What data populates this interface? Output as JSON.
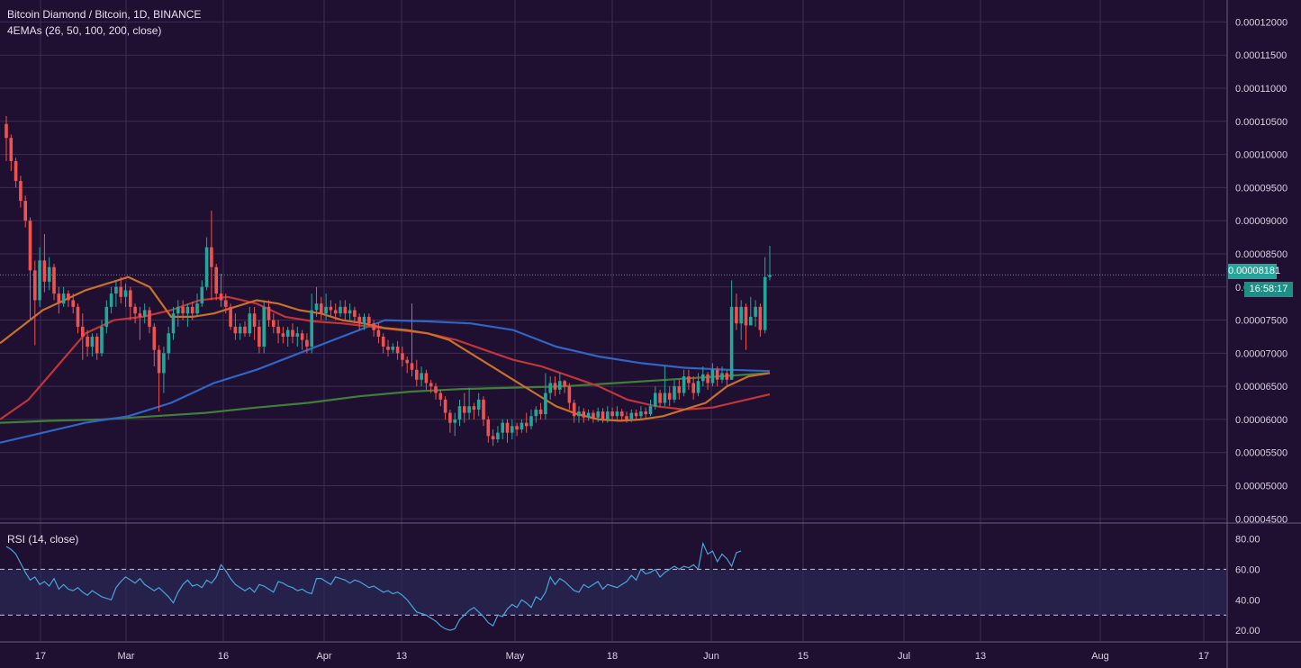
{
  "header": {
    "title": "Bitcoin Diamond / Bitcoin, 1D, BINANCE",
    "ema_legend": "4EMAs (26, 50, 100, 200, close)",
    "rsi_legend": "RSI (14, close)"
  },
  "price_badge": {
    "value": "0.00008181",
    "countdown": "16:58:17"
  },
  "colors": {
    "background": "#1f0f30",
    "grid": "#3d2d52",
    "up": "#26a69a",
    "down": "#ef5350",
    "ema26": "#c9702a",
    "ema50": "#c0353a",
    "ema100": "#2f66c4",
    "ema200": "#3f7f3a",
    "rsi": "#4aa3d9",
    "rsi_band": "#2a2a55"
  },
  "chart_data": {
    "type": "candlestick",
    "x_tick_labels": [
      "17",
      "Mar",
      "16",
      "Apr",
      "13",
      "May",
      "18",
      "Jun",
      "15",
      "Jul",
      "13",
      "Aug",
      "17"
    ],
    "y_tick_labels": [
      "0.00012000",
      "0.00011500",
      "0.00011000",
      "0.00010500",
      "0.00010000",
      "0.00009500",
      "0.00009000",
      "0.00008500",
      "0.00008000",
      "0.00007500",
      "0.00007000",
      "0.00006500",
      "0.00006000",
      "0.00005500",
      "0.00005000",
      "0.00004500"
    ],
    "ylim": [
      4.45e-05,
      0.0001225
    ],
    "last_price": 8.181e-05,
    "candles": [
      [
        0.0001046,
        0.0001025,
        0.0001058,
        9.9e-05
      ],
      [
        0.0001025,
        9.9e-05,
        0.000103,
        9.75e-05
      ],
      [
        9.9e-05,
        9.6e-05,
        9.95e-05,
        9.5e-05
      ],
      [
        9.6e-05,
        9.3e-05,
        9.68e-05,
        9.2e-05
      ],
      [
        9.3e-05,
        9e-05,
        9.38e-05,
        8.9e-05
      ],
      [
        9e-05,
        8.25e-05,
        9.05e-05,
        7.5e-05
      ],
      [
        8.25e-05,
        7.8e-05,
        8.4e-05,
        7.12e-05
      ],
      [
        7.8e-05,
        8.4e-05,
        8.6e-05,
        7.7e-05
      ],
      [
        8.4e-05,
        8.08e-05,
        8.8e-05,
        7.92e-05
      ],
      [
        8.08e-05,
        8.3e-05,
        8.45e-05,
        7.95e-05
      ],
      [
        8.3e-05,
        7.9e-05,
        8.35e-05,
        7.8e-05
      ],
      [
        7.9e-05,
        7.75e-05,
        8e-05,
        7.6e-05
      ],
      [
        7.75e-05,
        7.9e-05,
        8e-05,
        7.7e-05
      ],
      [
        7.9e-05,
        7.8e-05,
        7.95e-05,
        7.7e-05
      ],
      [
        7.8e-05,
        7.7e-05,
        7.9e-05,
        7.6e-05
      ],
      [
        7.7e-05,
        7.4e-05,
        7.75e-05,
        7.3e-05
      ],
      [
        7.4e-05,
        7.25e-05,
        7.6e-05,
        6.9e-05
      ],
      [
        7.25e-05,
        7.1e-05,
        7.35e-05,
        6.95e-05
      ],
      [
        7.1e-05,
        7.25e-05,
        7.3e-05,
        6.95e-05
      ],
      [
        7.25e-05,
        7e-05,
        7.3e-05,
        6.9e-05
      ],
      [
        7e-05,
        7.4e-05,
        7.5e-05,
        6.95e-05
      ],
      [
        7.4e-05,
        7.7e-05,
        7.8e-05,
        7.3e-05
      ],
      [
        7.7e-05,
        7.9e-05,
        8e-05,
        7.6e-05
      ],
      [
        7.9e-05,
        8e-05,
        8.1e-05,
        7.7e-05
      ],
      [
        8e-05,
        7.85e-05,
        8.15e-05,
        7.75e-05
      ],
      [
        7.85e-05,
        7.95e-05,
        8.05e-05,
        7.7e-05
      ],
      [
        7.95e-05,
        7.7e-05,
        8e-05,
        7.5e-05
      ],
      [
        7.7e-05,
        7.6e-05,
        7.75e-05,
        7.45e-05
      ],
      [
        7.6e-05,
        7.55e-05,
        7.7e-05,
        7.2e-05
      ],
      [
        7.55e-05,
        7.65e-05,
        7.75e-05,
        7.45e-05
      ],
      [
        7.65e-05,
        7.4e-05,
        7.7e-05,
        7.3e-05
      ],
      [
        7.4e-05,
        7.05e-05,
        7.45e-05,
        6.8e-05
      ],
      [
        7.05e-05,
        6.7e-05,
        7.12e-05,
        6.12e-05
      ],
      [
        6.7e-05,
        7e-05,
        7.1e-05,
        6.4e-05
      ],
      [
        7e-05,
        7.3e-05,
        7.4e-05,
        6.9e-05
      ],
      [
        7.3e-05,
        7.6e-05,
        7.7e-05,
        7.2e-05
      ],
      [
        7.6e-05,
        7.7e-05,
        7.8e-05,
        7.4e-05
      ],
      [
        7.7e-05,
        7.6e-05,
        7.8e-05,
        7.5e-05
      ],
      [
        7.6e-05,
        7.7e-05,
        7.75e-05,
        7.4e-05
      ],
      [
        7.7e-05,
        7.6e-05,
        7.78e-05,
        7.5e-05
      ],
      [
        7.6e-05,
        7.75e-05,
        7.9e-05,
        7.55e-05
      ],
      [
        7.75e-05,
        8e-05,
        8.1e-05,
        7.7e-05
      ],
      [
        8e-05,
        8.6e-05,
        8.75e-05,
        7.95e-05
      ],
      [
        8.6e-05,
        8.3e-05,
        9.15e-05,
        7.8e-05
      ],
      [
        8.3e-05,
        7.9e-05,
        8.35e-05,
        7.8e-05
      ],
      [
        7.9e-05,
        7.8e-05,
        8.2e-05,
        7.7e-05
      ],
      [
        7.8e-05,
        7.7e-05,
        7.9e-05,
        7.6e-05
      ],
      [
        7.7e-05,
        7.4e-05,
        7.75e-05,
        7.35e-05
      ],
      [
        7.4e-05,
        7.3e-05,
        7.6e-05,
        7.2e-05
      ],
      [
        7.3e-05,
        7.4e-05,
        7.45e-05,
        7.2e-05
      ],
      [
        7.4e-05,
        7.3e-05,
        7.48e-05,
        7.25e-05
      ],
      [
        7.3e-05,
        7.6e-05,
        7.7e-05,
        7.25e-05
      ],
      [
        7.6e-05,
        7.4e-05,
        7.7e-05,
        7.2e-05
      ],
      [
        7.4e-05,
        7.1e-05,
        7.5e-05,
        7e-05
      ],
      [
        7.1e-05,
        7.7e-05,
        7.8e-05,
        7e-05
      ],
      [
        7.7e-05,
        7.5e-05,
        7.8e-05,
        7.4e-05
      ],
      [
        7.5e-05,
        7.4e-05,
        7.6e-05,
        7.3e-05
      ],
      [
        7.4e-05,
        7.3e-05,
        7.5e-05,
        7.15e-05
      ],
      [
        7.3e-05,
        7.25e-05,
        7.4e-05,
        7.15e-05
      ],
      [
        7.25e-05,
        7.35e-05,
        7.4e-05,
        7.1e-05
      ],
      [
        7.35e-05,
        7.25e-05,
        7.45e-05,
        7.15e-05
      ],
      [
        7.25e-05,
        7.3e-05,
        7.4e-05,
        7.1e-05
      ],
      [
        7.3e-05,
        7.2e-05,
        7.35e-05,
        7.05e-05
      ],
      [
        7.2e-05,
        7.1e-05,
        7.3e-05,
        7e-05
      ],
      [
        7.1e-05,
        7.65e-05,
        7.9e-05,
        7e-05
      ],
      [
        7.65e-05,
        7.75e-05,
        8e-05,
        7.55e-05
      ],
      [
        7.75e-05,
        7.6e-05,
        7.85e-05,
        7.5e-05
      ],
      [
        7.6e-05,
        7.7e-05,
        7.9e-05,
        7.5e-05
      ],
      [
        7.7e-05,
        7.65e-05,
        7.8e-05,
        7.55e-05
      ],
      [
        7.65e-05,
        7.6e-05,
        7.75e-05,
        7.5e-05
      ],
      [
        7.6e-05,
        7.7e-05,
        7.8e-05,
        7.55e-05
      ],
      [
        7.7e-05,
        7.6e-05,
        7.8e-05,
        7.5e-05
      ],
      [
        7.6e-05,
        7.65e-05,
        7.75e-05,
        7.5e-05
      ],
      [
        7.65e-05,
        7.55e-05,
        7.7e-05,
        7.45e-05
      ],
      [
        7.55e-05,
        7.45e-05,
        7.6e-05,
        7.35e-05
      ],
      [
        7.45e-05,
        7.55e-05,
        7.6e-05,
        7.35e-05
      ],
      [
        7.55e-05,
        7.45e-05,
        7.6e-05,
        7.4e-05
      ],
      [
        7.45e-05,
        7.35e-05,
        7.5e-05,
        7.25e-05
      ],
      [
        7.35e-05,
        7.25e-05,
        7.45e-05,
        7.15e-05
      ],
      [
        7.25e-05,
        7.1e-05,
        7.3e-05,
        7e-05
      ],
      [
        7.1e-05,
        7.05e-05,
        7.2e-05,
        6.95e-05
      ],
      [
        7.05e-05,
        7.1e-05,
        7.15e-05,
        7e-05
      ],
      [
        7.1e-05,
        7e-05,
        7.18e-05,
        6.9e-05
      ],
      [
        7e-05,
        6.9e-05,
        7.1e-05,
        6.8e-05
      ],
      [
        6.9e-05,
        6.85e-05,
        6.95e-05,
        6.7e-05
      ],
      [
        6.85e-05,
        6.75e-05,
        7.75e-05,
        6.65e-05
      ],
      [
        6.75e-05,
        6.6e-05,
        6.9e-05,
        6.5e-05
      ],
      [
        6.6e-05,
        6.7e-05,
        6.8e-05,
        6.5e-05
      ],
      [
        6.7e-05,
        6.55e-05,
        6.75e-05,
        6.45e-05
      ],
      [
        6.55e-05,
        6.5e-05,
        6.6e-05,
        6.4e-05
      ],
      [
        6.5e-05,
        6.4e-05,
        6.55e-05,
        6.3e-05
      ],
      [
        6.4e-05,
        6.3e-05,
        6.45e-05,
        6.2e-05
      ],
      [
        6.3e-05,
        6.1e-05,
        6.35e-05,
        6e-05
      ],
      [
        6.1e-05,
        5.95e-05,
        6.15e-05,
        5.8e-05
      ],
      [
        5.95e-05,
        6e-05,
        6.1e-05,
        5.75e-05
      ],
      [
        6e-05,
        6.2e-05,
        6.3e-05,
        5.9e-05
      ],
      [
        6.2e-05,
        6.1e-05,
        6.4e-05,
        5.95e-05
      ],
      [
        6.1e-05,
        6.2e-05,
        6.48e-05,
        6e-05
      ],
      [
        6.2e-05,
        6.15e-05,
        6.25e-05,
        6e-05
      ],
      [
        6.15e-05,
        6.3e-05,
        6.4e-05,
        6.05e-05
      ],
      [
        6.3e-05,
        6e-05,
        6.35e-05,
        5.9e-05
      ],
      [
        6e-05,
        5.75e-05,
        6.05e-05,
        5.65e-05
      ],
      [
        5.75e-05,
        5.7e-05,
        5.85e-05,
        5.6e-05
      ],
      [
        5.7e-05,
        5.8e-05,
        5.9e-05,
        5.65e-05
      ],
      [
        5.8e-05,
        5.95e-05,
        6e-05,
        5.7e-05
      ],
      [
        5.95e-05,
        5.8e-05,
        6e-05,
        5.65e-05
      ],
      [
        5.8e-05,
        5.9e-05,
        6e-05,
        5.7e-05
      ],
      [
        5.9e-05,
        5.85e-05,
        5.95e-05,
        5.75e-05
      ],
      [
        5.85e-05,
        5.95e-05,
        6e-05,
        5.8e-05
      ],
      [
        5.95e-05,
        5.9e-05,
        6.1e-05,
        5.8e-05
      ],
      [
        5.9e-05,
        6.05e-05,
        6.15e-05,
        5.85e-05
      ],
      [
        6.05e-05,
        6.15e-05,
        6.2e-05,
        5.95e-05
      ],
      [
        6.15e-05,
        6.08e-05,
        6.25e-05,
        6e-05
      ],
      [
        6.08e-05,
        6.4e-05,
        6.7e-05,
        6e-05
      ],
      [
        6.4e-05,
        6.55e-05,
        6.65e-05,
        6.3e-05
      ],
      [
        6.55e-05,
        6.45e-05,
        6.65e-05,
        6.35e-05
      ],
      [
        6.45e-05,
        6.58e-05,
        6.7e-05,
        6.38e-05
      ],
      [
        6.58e-05,
        6.5e-05,
        6.6e-05,
        6.4e-05
      ],
      [
        6.5e-05,
        6.25e-05,
        6.55e-05,
        6.15e-05
      ],
      [
        6.25e-05,
        6.05e-05,
        6.3e-05,
        5.95e-05
      ],
      [
        6.05e-05,
        6.12e-05,
        6.2e-05,
        5.95e-05
      ],
      [
        6.12e-05,
        6.03e-05,
        6.17e-05,
        5.95e-05
      ],
      [
        6.03e-05,
        6.1e-05,
        6.15e-05,
        5.98e-05
      ],
      [
        6.1e-05,
        6.03e-05,
        6.14e-05,
        5.95e-05
      ],
      [
        6.03e-05,
        6.12e-05,
        6.18e-05,
        5.96e-05
      ],
      [
        6.12e-05,
        6e-05,
        6.17e-05,
        5.95e-05
      ],
      [
        6e-05,
        6.12e-05,
        6.2e-05,
        5.95e-05
      ],
      [
        6.12e-05,
        6.05e-05,
        6.18e-05,
        5.98e-05
      ],
      [
        6.05e-05,
        6.12e-05,
        6.2e-05,
        6e-05
      ],
      [
        6.12e-05,
        6.05e-05,
        6.16e-05,
        5.98e-05
      ],
      [
        6.05e-05,
        6e-05,
        6.12e-05,
        5.95e-05
      ],
      [
        6e-05,
        6.1e-05,
        6.15e-05,
        5.96e-05
      ],
      [
        6.1e-05,
        6.05e-05,
        6.15e-05,
        6e-05
      ],
      [
        6.05e-05,
        6.12e-05,
        6.2e-05,
        6e-05
      ],
      [
        6.12e-05,
        6.08e-05,
        6.18e-05,
        6e-05
      ],
      [
        6.08e-05,
        6.2e-05,
        6.3e-05,
        6.05e-05
      ],
      [
        6.2e-05,
        6.4e-05,
        6.5e-05,
        6.15e-05
      ],
      [
        6.4e-05,
        6.25e-05,
        6.45e-05,
        6.18e-05
      ],
      [
        6.25e-05,
        6.4e-05,
        6.8e-05,
        6.2e-05
      ],
      [
        6.4e-05,
        6.3e-05,
        6.5e-05,
        6.2e-05
      ],
      [
        6.3e-05,
        6.5e-05,
        6.6e-05,
        6.25e-05
      ],
      [
        6.5e-05,
        6.4e-05,
        6.6e-05,
        6.3e-05
      ],
      [
        6.4e-05,
        6.65e-05,
        6.75e-05,
        6.35e-05
      ],
      [
        6.65e-05,
        6.55e-05,
        6.75e-05,
        6.45e-05
      ],
      [
        6.55e-05,
        6.4e-05,
        6.65e-05,
        6.3e-05
      ],
      [
        6.4e-05,
        6.58e-05,
        6.7e-05,
        6.35e-05
      ],
      [
        6.58e-05,
        6.68e-05,
        6.8e-05,
        6.5e-05
      ],
      [
        6.68e-05,
        6.55e-05,
        6.72e-05,
        6.45e-05
      ],
      [
        6.55e-05,
        6.75e-05,
        6.85e-05,
        6.5e-05
      ],
      [
        6.75e-05,
        6.6e-05,
        6.8e-05,
        6.5e-05
      ],
      [
        6.6e-05,
        6.7e-05,
        6.8e-05,
        6.55e-05
      ],
      [
        6.7e-05,
        6.6e-05,
        6.75e-05,
        6.5e-05
      ],
      [
        6.6e-05,
        7.7e-05,
        8.1e-05,
        6.6e-05
      ],
      [
        7.7e-05,
        7.45e-05,
        7.9e-05,
        7.35e-05
      ],
      [
        7.45e-05,
        7.7e-05,
        7.8e-05,
        7.2e-05
      ],
      [
        7.7e-05,
        7.42e-05,
        7.75e-05,
        7.05e-05
      ],
      [
        7.42e-05,
        7.55e-05,
        7.85e-05,
        7.45e-05
      ],
      [
        7.55e-05,
        7.7e-05,
        7.8e-05,
        7.4e-05
      ],
      [
        7.7e-05,
        7.35e-05,
        7.75e-05,
        7.25e-05
      ],
      [
        7.35e-05,
        8.15e-05,
        8.45e-05,
        7.3e-05
      ],
      [
        8.15e-05,
        8.181e-05,
        8.62e-05,
        8.1e-05
      ]
    ],
    "ema26": [
      7.15e-05,
      7.4e-05,
      7.65e-05,
      7.8e-05,
      7.95e-05,
      8.05e-05,
      8.15e-05,
      8e-05,
      7.55e-05,
      7.55e-05,
      7.6e-05,
      7.7e-05,
      7.8e-05,
      7.75e-05,
      7.65e-05,
      7.6e-05,
      7.5e-05,
      7.45e-05,
      7.38e-05,
      7.35e-05,
      7.3e-05,
      7.2e-05,
      7e-05,
      6.8e-05,
      6.6e-05,
      6.4e-05,
      6.2e-05,
      6.08e-05,
      6e-05,
      5.98e-05,
      6e-05,
      6.05e-05,
      6.15e-05,
      6.25e-05,
      6.5e-05,
      6.65e-05,
      6.7e-05
    ],
    "ema50": [
      6e-05,
      6.3e-05,
      6.8e-05,
      7.3e-05,
      7.5e-05,
      7.55e-05,
      7.65e-05,
      7.8e-05,
      7.85e-05,
      7.75e-05,
      7.55e-05,
      7.48e-05,
      7.45e-05,
      7.4e-05,
      7.35e-05,
      7.3e-05,
      7.2e-05,
      7.05e-05,
      6.9e-05,
      6.8e-05,
      6.65e-05,
      6.5e-05,
      6.3e-05,
      6.2e-05,
      6.15e-05,
      6.18e-05,
      6.28e-05,
      6.38e-05
    ],
    "ema100": [
      5.65e-05,
      5.8e-05,
      5.95e-05,
      6.05e-05,
      6.25e-05,
      6.55e-05,
      6.75e-05,
      7e-05,
      7.25e-05,
      7.5e-05,
      7.48e-05,
      7.45e-05,
      7.35e-05,
      7.1e-05,
      6.95e-05,
      6.85e-05,
      6.78e-05,
      6.75e-05,
      6.73e-05
    ],
    "ema200": [
      5.95e-05,
      5.98e-05,
      6e-05,
      6.05e-05,
      6.1e-05,
      6.18e-05,
      6.25e-05,
      6.35e-05,
      6.42e-05,
      6.46e-05,
      6.48e-05,
      6.5e-05,
      6.55e-05,
      6.6e-05,
      6.65e-05,
      6.7e-05
    ],
    "rsi_ylim": [
      13,
      88
    ],
    "rsi_levels": [
      30,
      60
    ],
    "rsi_y_tick_labels": [
      "80.00",
      "60.00",
      "40.00",
      "20.00"
    ],
    "rsi": [
      75,
      73,
      70,
      64,
      58,
      53,
      55,
      50,
      52,
      49,
      54,
      47,
      50,
      47,
      46,
      48,
      45,
      43,
      46,
      44,
      42,
      41,
      40,
      48,
      52,
      55,
      53,
      51,
      54,
      50,
      48,
      46,
      48,
      45,
      42,
      38,
      45,
      50,
      53,
      49,
      50,
      48,
      53,
      51,
      55,
      63,
      59,
      54,
      50,
      48,
      46,
      48,
      45,
      50,
      49,
      47,
      45,
      52,
      51,
      49,
      48,
      46,
      47,
      45,
      44,
      54,
      54,
      52,
      50,
      55,
      54,
      53,
      51,
      53,
      52,
      50,
      48,
      49,
      47,
      45,
      46,
      44,
      45,
      43,
      40,
      36,
      32,
      31,
      30,
      28,
      26,
      23,
      21,
      20,
      21,
      27,
      30,
      33,
      35,
      32,
      29,
      25,
      23,
      30,
      29,
      34,
      37,
      35,
      40,
      38,
      35,
      42,
      40,
      45,
      55,
      50,
      54,
      52,
      49,
      46,
      45,
      50,
      48,
      50,
      52,
      47,
      50,
      49,
      48,
      50,
      52,
      56,
      53,
      60,
      57,
      58,
      60,
      55,
      58,
      60,
      62,
      60,
      62,
      61,
      63,
      60,
      77,
      70,
      72,
      65,
      70,
      67,
      62,
      71,
      72
    ]
  }
}
